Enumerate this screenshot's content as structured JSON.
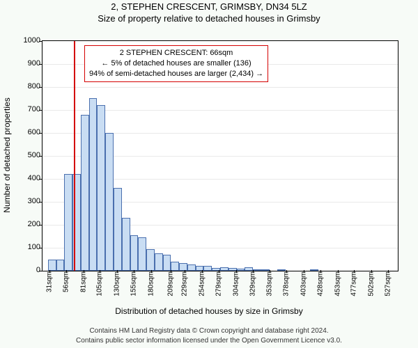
{
  "titles": {
    "address": "2, STEPHEN CRESCENT, GRIMSBY, DN34 5LZ",
    "subtitle": "Size of property relative to detached houses in Grimsby"
  },
  "chart": {
    "type": "histogram",
    "background_color": "#ffffff",
    "grid_color": "#e9e9e9",
    "bar_fill": "#c9ddf3",
    "bar_border": "#4a6fae",
    "marker_color": "#d40000",
    "marker_value": 66,
    "ylim": [
      0,
      1000
    ],
    "ytick_step": 100,
    "ylabel": "Number of detached properties",
    "xlabel": "Distribution of detached houses by size in Grimsby",
    "xlim": [
      20,
      540
    ],
    "bin_width": 12,
    "xticks": [
      31,
      56,
      81,
      105,
      130,
      155,
      180,
      209,
      229,
      254,
      279,
      304,
      329,
      353,
      378,
      403,
      428,
      453,
      477,
      502,
      527
    ],
    "xtick_suffix": "sqm",
    "annotation": {
      "line1": "2 STEPHEN CRESCENT: 66sqm",
      "line2": "← 5% of detached houses are smaller (136)",
      "line3": "94% of semi-detached houses are larger (2,434) →"
    },
    "bins": [
      {
        "start": 28,
        "count": 50
      },
      {
        "start": 40,
        "count": 50
      },
      {
        "start": 52,
        "count": 420
      },
      {
        "start": 64,
        "count": 420
      },
      {
        "start": 76,
        "count": 680
      },
      {
        "start": 88,
        "count": 752
      },
      {
        "start": 100,
        "count": 720
      },
      {
        "start": 112,
        "count": 600
      },
      {
        "start": 124,
        "count": 360
      },
      {
        "start": 136,
        "count": 230
      },
      {
        "start": 148,
        "count": 155
      },
      {
        "start": 160,
        "count": 145
      },
      {
        "start": 172,
        "count": 95
      },
      {
        "start": 184,
        "count": 75
      },
      {
        "start": 196,
        "count": 70
      },
      {
        "start": 208,
        "count": 40
      },
      {
        "start": 220,
        "count": 32
      },
      {
        "start": 232,
        "count": 28
      },
      {
        "start": 244,
        "count": 22
      },
      {
        "start": 256,
        "count": 20
      },
      {
        "start": 268,
        "count": 12
      },
      {
        "start": 280,
        "count": 14
      },
      {
        "start": 292,
        "count": 12
      },
      {
        "start": 304,
        "count": 8
      },
      {
        "start": 316,
        "count": 14
      },
      {
        "start": 328,
        "count": 6
      },
      {
        "start": 340,
        "count": 4
      },
      {
        "start": 364,
        "count": 4
      },
      {
        "start": 412,
        "count": 6
      }
    ]
  },
  "footer": {
    "line1": "Contains HM Land Registry data © Crown copyright and database right 2024.",
    "line2": "Contains public sector information licensed under the Open Government Licence v3.0."
  }
}
